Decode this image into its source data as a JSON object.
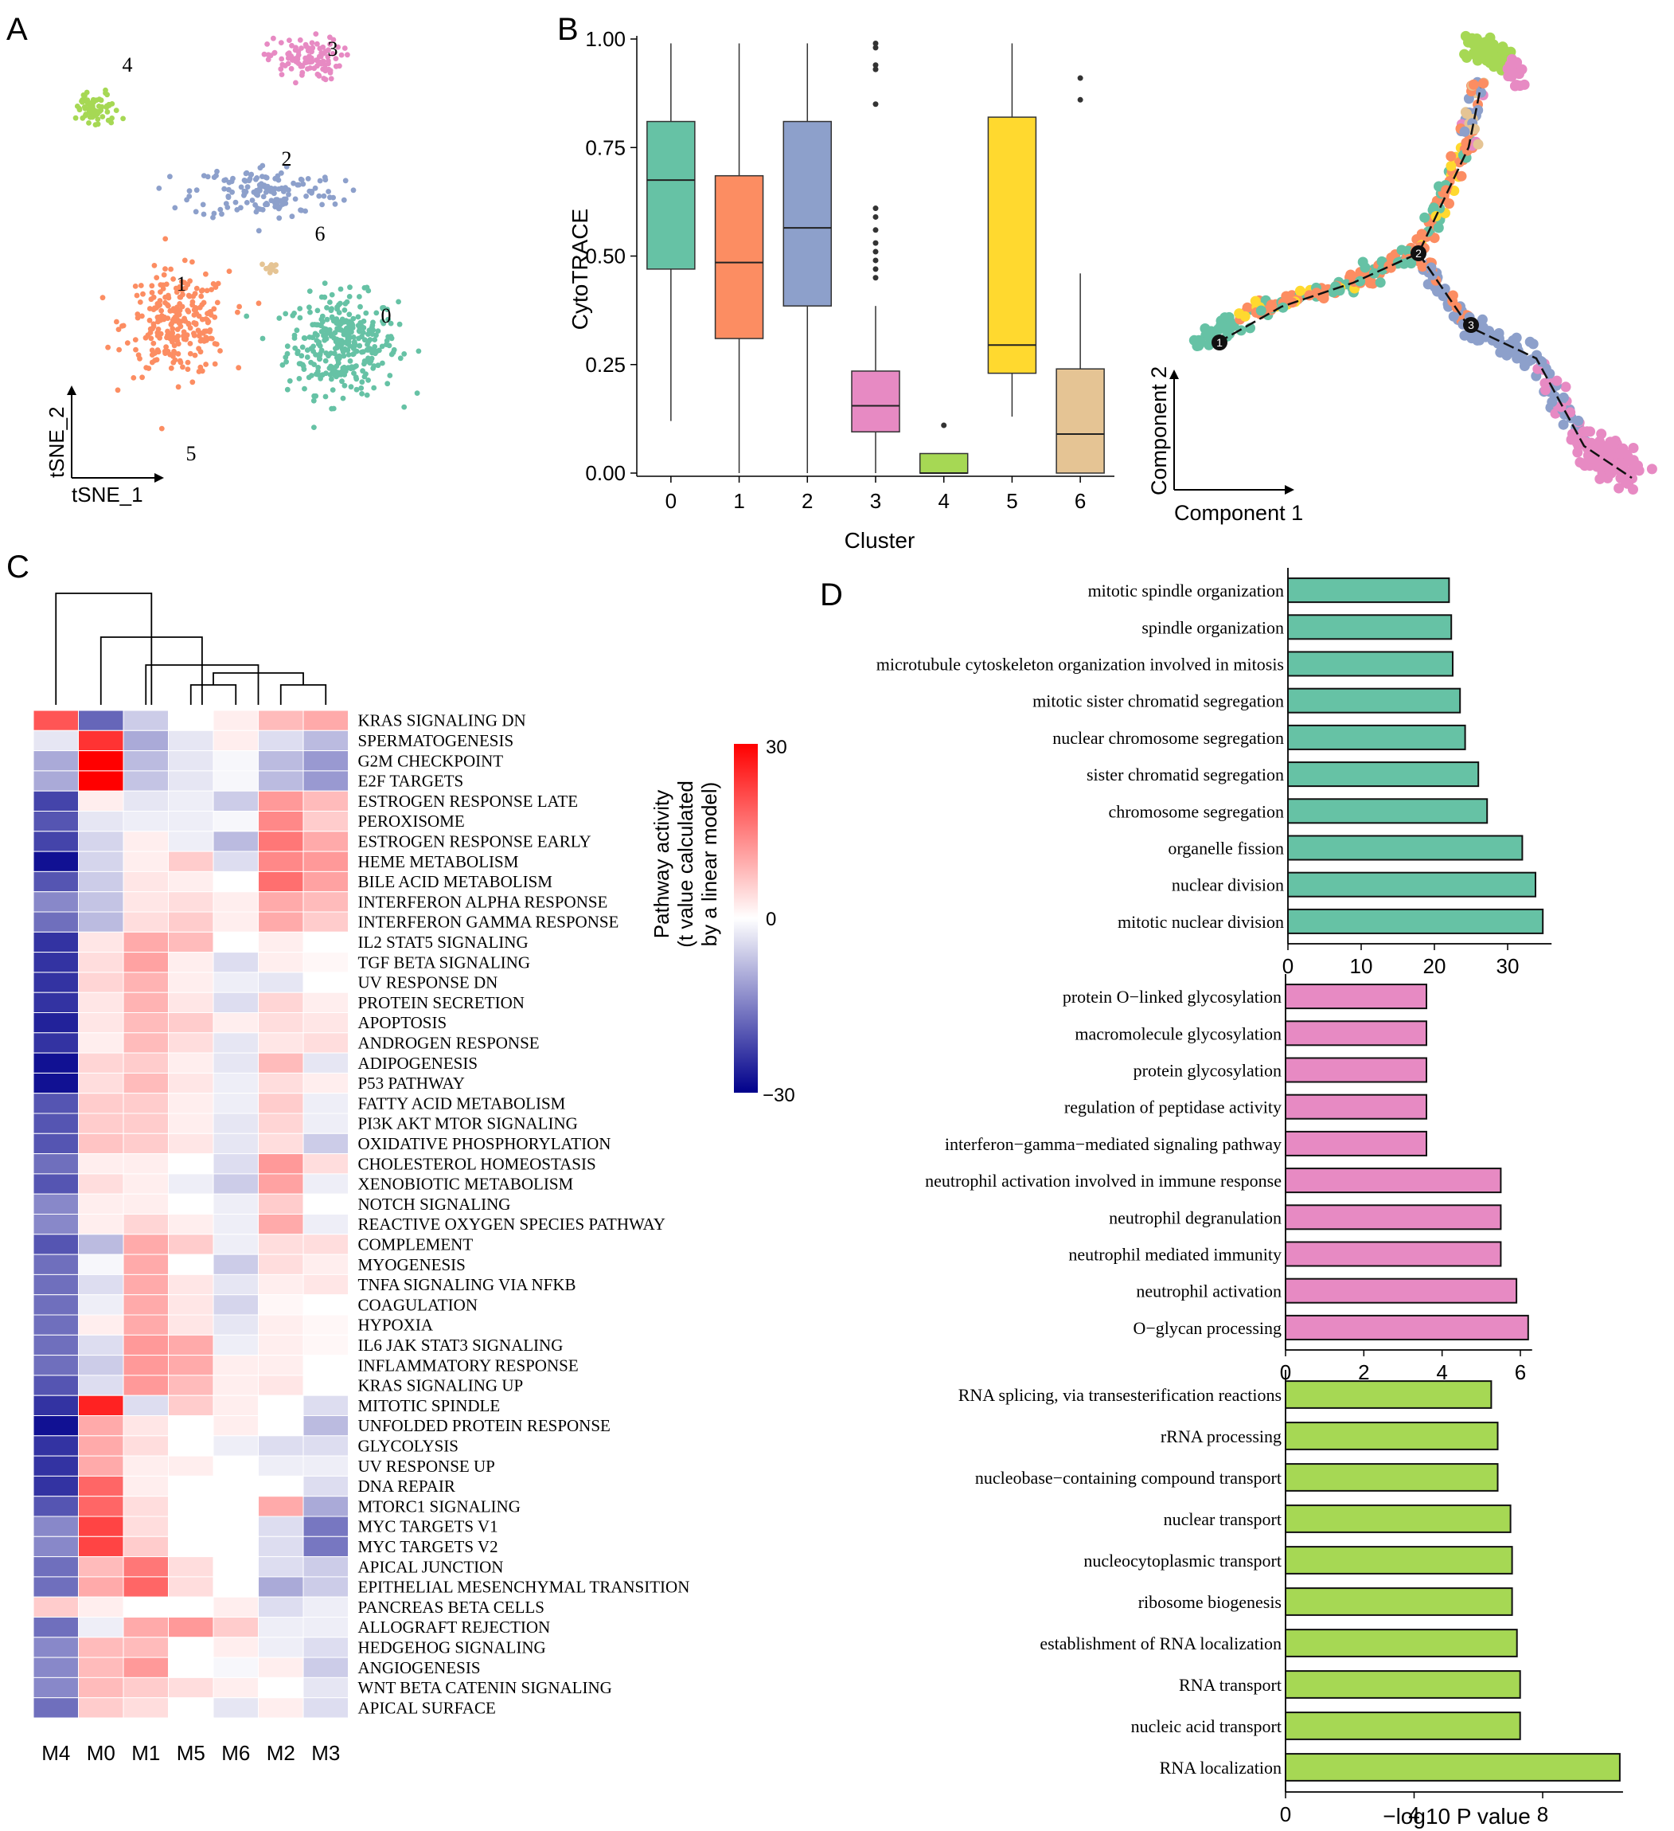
{
  "panel_letters": [
    "A",
    "B",
    "C",
    "D"
  ],
  "chart_data": [
    {
      "panel": "A",
      "type": "scatter",
      "xlabel": "tSNE_1",
      "ylabel": "tSNE_2",
      "cluster_labels": [
        "0",
        "1",
        "2",
        "3",
        "4",
        "5",
        "6"
      ],
      "clusters": [
        {
          "name": "0",
          "color": "#66c2a5",
          "center": [
            0.25,
            -0.32
          ],
          "spread": [
            0.18,
            0.16
          ],
          "n": 330
        },
        {
          "name": "1",
          "color": "#fc8d62",
          "center": [
            -0.4,
            -0.24
          ],
          "spread": [
            0.17,
            0.17
          ],
          "n": 260
        },
        {
          "name": "2",
          "color": "#8da0cb",
          "center": [
            -0.05,
            0.28
          ],
          "spread": [
            0.24,
            0.09
          ],
          "n": 150
        },
        {
          "name": "3",
          "color": "#e78ac3",
          "center": [
            0.1,
            0.8
          ],
          "spread": [
            0.12,
            0.07
          ],
          "n": 110
        },
        {
          "name": "4",
          "color": "#a6d854",
          "center": [
            -0.72,
            0.6
          ],
          "spread": [
            0.08,
            0.06
          ],
          "n": 70
        },
        {
          "name": "5",
          "color": "#ffd92f",
          "center": [
            -0.52,
            -0.98
          ],
          "spread": [
            0.03,
            0.025
          ],
          "n": 14
        },
        {
          "name": "6",
          "color": "#e5c494",
          "center": [
            -0.03,
            -0.02
          ],
          "spread": [
            0.03,
            0.02
          ],
          "n": 10
        }
      ]
    },
    {
      "panel": "B",
      "type": "box",
      "xlabel": "Cluster",
      "ylabel": "CytoTRACE",
      "ylim": [
        0,
        1
      ],
      "yticks": [
        "0.00",
        "0.25",
        "0.50",
        "0.75",
        "1.00"
      ],
      "categories": [
        "0",
        "1",
        "2",
        "3",
        "4",
        "5",
        "6"
      ],
      "colors": [
        "#66c2a5",
        "#fc8d62",
        "#8da0cb",
        "#e78ac3",
        "#a6d854",
        "#ffd92f",
        "#e5c494"
      ],
      "boxes": [
        {
          "min": 0.12,
          "q1": 0.47,
          "median": 0.675,
          "q3": 0.81,
          "max": 0.99,
          "outliers": []
        },
        {
          "min": 0.0,
          "q1": 0.31,
          "median": 0.485,
          "q3": 0.685,
          "max": 0.99,
          "outliers": []
        },
        {
          "min": 0.0,
          "q1": 0.385,
          "median": 0.565,
          "q3": 0.81,
          "max": 0.99,
          "outliers": []
        },
        {
          "min": 0.0,
          "q1": 0.095,
          "median": 0.155,
          "q3": 0.235,
          "max": 0.385,
          "outliers": [
            0.99,
            0.98,
            0.94,
            0.93,
            0.85,
            0.61,
            0.59,
            0.56,
            0.53,
            0.51,
            0.49,
            0.47,
            0.45
          ]
        },
        {
          "min": 0.0,
          "q1": 0.0,
          "median": 0.0,
          "q3": 0.045,
          "max": 0.045,
          "outliers": [
            0.11
          ]
        },
        {
          "min": 0.13,
          "q1": 0.23,
          "median": 0.295,
          "q3": 0.82,
          "max": 0.99,
          "outliers": []
        },
        {
          "min": 0.0,
          "q1": 0.0,
          "median": 0.09,
          "q3": 0.24,
          "max": 0.46,
          "outliers": [
            0.91,
            0.86
          ]
        }
      ]
    },
    {
      "panel": "B-right",
      "type": "scatter",
      "xlabel": "Component 1",
      "ylabel": "Component 2",
      "branch_points": [
        "1",
        "2",
        "3"
      ]
    },
    {
      "panel": "C",
      "type": "heatmap",
      "columns": [
        "M4",
        "M0",
        "M1",
        "M5",
        "M6",
        "M2",
        "M3"
      ],
      "colorbar": {
        "title_lines": [
          "Pathway activity",
          "(t value calculated",
          "by a linear model)"
        ],
        "ticks": [
          "30",
          "0",
          "−30"
        ],
        "range": [
          -30,
          30
        ],
        "low": "#00008b",
        "mid": "#ffffff",
        "high": "#ff0000"
      },
      "rows": [
        {
          "name": "KRAS SIGNALING DN",
          "values": [
            20,
            -18,
            -6,
            0,
            2,
            8,
            10
          ]
        },
        {
          "name": "SPERMATOGENESIS",
          "values": [
            -3,
            24,
            -10,
            -3,
            2,
            -4,
            -8
          ]
        },
        {
          "name": "G2M CHECKPOINT",
          "values": [
            -10,
            30,
            -8,
            -3,
            -1,
            -8,
            -12
          ]
        },
        {
          "name": "E2F TARGETS",
          "values": [
            -10,
            30,
            -7,
            -3,
            -1,
            -8,
            -12
          ]
        },
        {
          "name": "ESTROGEN RESPONSE LATE",
          "values": [
            -22,
            2,
            -3,
            -2,
            -6,
            12,
            8
          ]
        },
        {
          "name": "PEROXISOME",
          "values": [
            -20,
            -3,
            -2,
            -2,
            -1,
            14,
            6
          ]
        },
        {
          "name": "ESTROGEN RESPONSE EARLY",
          "values": [
            -22,
            -5,
            2,
            -2,
            -8,
            16,
            10
          ]
        },
        {
          "name": "HEME METABOLISM",
          "values": [
            -28,
            -5,
            2,
            6,
            -4,
            14,
            12
          ]
        },
        {
          "name": "BILE ACID METABOLISM",
          "values": [
            -20,
            -6,
            3,
            2,
            0,
            17,
            11
          ]
        },
        {
          "name": "INTERFERON ALPHA RESPONSE",
          "values": [
            -14,
            -7,
            3,
            4,
            2,
            10,
            8
          ]
        },
        {
          "name": "INTERFERON GAMMA RESPONSE",
          "values": [
            -17,
            -8,
            4,
            6,
            2,
            10,
            6
          ]
        },
        {
          "name": "IL2 STAT5 SIGNALING",
          "values": [
            -24,
            3,
            10,
            8,
            0,
            2,
            0
          ]
        },
        {
          "name": "TGF BETA SIGNALING",
          "values": [
            -24,
            4,
            11,
            2,
            -4,
            2,
            1
          ]
        },
        {
          "name": "UV RESPONSE DN",
          "values": [
            -24,
            5,
            9,
            2,
            -2,
            -3,
            0
          ]
        },
        {
          "name": "PROTEIN SECRETION",
          "values": [
            -24,
            3,
            9,
            3,
            -4,
            5,
            2
          ]
        },
        {
          "name": "APOPTOSIS",
          "values": [
            -26,
            3,
            8,
            6,
            2,
            4,
            3
          ]
        },
        {
          "name": "ANDROGEN RESPONSE",
          "values": [
            -24,
            2,
            8,
            4,
            -3,
            3,
            4
          ]
        },
        {
          "name": "ADIPOGENESIS",
          "values": [
            -28,
            5,
            6,
            2,
            -3,
            8,
            -3
          ]
        },
        {
          "name": "P53 PATHWAY",
          "values": [
            -28,
            4,
            8,
            3,
            -2,
            4,
            2
          ]
        },
        {
          "name": "FATTY ACID METABOLISM",
          "values": [
            -20,
            6,
            6,
            2,
            -2,
            6,
            -2
          ]
        },
        {
          "name": "PI3K AKT MTOR SIGNALING",
          "values": [
            -20,
            6,
            6,
            2,
            -3,
            5,
            -2
          ]
        },
        {
          "name": "OXIDATIVE PHOSPHORYLATION",
          "values": [
            -20,
            7,
            6,
            3,
            -3,
            4,
            -6
          ]
        },
        {
          "name": "CHOLESTEROL HOMEOSTASIS",
          "values": [
            -17,
            2,
            2,
            0,
            -4,
            12,
            4
          ]
        },
        {
          "name": "XENOBIOTIC METABOLISM",
          "values": [
            -20,
            4,
            2,
            -2,
            -6,
            11,
            -2
          ]
        },
        {
          "name": "NOTCH SIGNALING",
          "values": [
            -14,
            2,
            2,
            0,
            -2,
            6,
            0
          ]
        },
        {
          "name": "REACTIVE OXYGEN SPECIES PATHWAY",
          "values": [
            -14,
            2,
            5,
            2,
            -2,
            10,
            -2
          ]
        },
        {
          "name": "COMPLEMENT",
          "values": [
            -20,
            -8,
            10,
            6,
            -2,
            4,
            4
          ]
        },
        {
          "name": "MYOGENESIS",
          "values": [
            -17,
            -1,
            10,
            0,
            -6,
            4,
            2
          ]
        },
        {
          "name": "TNFA SIGNALING VIA NFKB",
          "values": [
            -17,
            -4,
            10,
            3,
            -3,
            2,
            3
          ]
        },
        {
          "name": "COAGULATION",
          "values": [
            -17,
            -2,
            10,
            3,
            -5,
            1,
            0
          ]
        },
        {
          "name": "HYPOXIA",
          "values": [
            -17,
            2,
            10,
            3,
            -3,
            2,
            1
          ]
        },
        {
          "name": "IL6 JAK STAT3 SIGNALING",
          "values": [
            -17,
            -4,
            12,
            10,
            -2,
            2,
            1
          ]
        },
        {
          "name": "INFLAMMATORY RESPONSE",
          "values": [
            -17,
            -6,
            12,
            10,
            2,
            2,
            0
          ]
        },
        {
          "name": "KRAS SIGNALING UP",
          "values": [
            -20,
            -4,
            12,
            8,
            2,
            3,
            0
          ]
        },
        {
          "name": "MITOTIC SPINDLE",
          "values": [
            -24,
            26,
            -4,
            6,
            2,
            0,
            -4
          ]
        },
        {
          "name": "UNFOLDED PROTEIN RESPONSE",
          "values": [
            -28,
            10,
            3,
            0,
            2,
            0,
            -8
          ]
        },
        {
          "name": "GLYCOLYSIS",
          "values": [
            -24,
            10,
            4,
            0,
            -2,
            -4,
            -4
          ]
        },
        {
          "name": "UV RESPONSE UP",
          "values": [
            -24,
            10,
            2,
            2,
            0,
            -2,
            -2
          ]
        },
        {
          "name": "DNA REPAIR",
          "values": [
            -24,
            18,
            2,
            0,
            0,
            0,
            -4
          ]
        },
        {
          "name": "MTORC1 SIGNALING",
          "values": [
            -20,
            18,
            4,
            0,
            0,
            10,
            -10
          ]
        },
        {
          "name": "MYC TARGETS V1",
          "values": [
            -14,
            22,
            4,
            0,
            0,
            -4,
            -16
          ]
        },
        {
          "name": "MYC TARGETS V2",
          "values": [
            -14,
            22,
            6,
            0,
            0,
            -4,
            -16
          ]
        },
        {
          "name": "APICAL JUNCTION",
          "values": [
            -17,
            8,
            16,
            4,
            0,
            -4,
            -6
          ]
        },
        {
          "name": "EPITHELIAL MESENCHYMAL TRANSITION",
          "values": [
            -17,
            10,
            18,
            4,
            0,
            -10,
            -6
          ]
        },
        {
          "name": "PANCREAS BETA CELLS",
          "values": [
            6,
            2,
            0,
            0,
            2,
            -4,
            -2
          ]
        },
        {
          "name": "ALLOGRAFT REJECTION",
          "values": [
            -17,
            -2,
            10,
            12,
            6,
            -2,
            -2
          ]
        },
        {
          "name": "HEDGEHOG SIGNALING",
          "values": [
            -14,
            8,
            8,
            0,
            2,
            -2,
            -4
          ]
        },
        {
          "name": "ANGIOGENESIS",
          "values": [
            -14,
            8,
            12,
            0,
            -1,
            2,
            -6
          ]
        },
        {
          "name": "WNT BETA CATENIN SIGNALING",
          "values": [
            -14,
            8,
            6,
            4,
            2,
            0,
            -3
          ]
        },
        {
          "name": "APICAL SURFACE",
          "values": [
            -17,
            6,
            4,
            0,
            -3,
            2,
            -4
          ]
        }
      ]
    },
    {
      "panel": "D1",
      "type": "bar",
      "orientation": "horizontal",
      "color": "#66c2a5",
      "categories": [
        "mitotic spindle organization",
        "spindle organization",
        "microtubule cytoskeleton organization involved in mitosis",
        "mitotic sister chromatid segregation",
        "nuclear chromosome segregation",
        "sister chromatid segregation",
        "chromosome segregation",
        "organelle fission",
        "nuclear division",
        "mitotic nuclear division"
      ],
      "values": [
        22.0,
        22.3,
        22.5,
        23.5,
        24.2,
        26.0,
        27.2,
        32.0,
        33.8,
        34.8
      ],
      "xlim": [
        0,
        36
      ],
      "xticks": [
        "0",
        "10",
        "20",
        "30"
      ]
    },
    {
      "panel": "D2",
      "type": "bar",
      "orientation": "horizontal",
      "color": "#e78ac3",
      "categories": [
        "protein O−linked glycosylation",
        "macromolecule glycosylation",
        "protein glycosylation",
        "regulation of peptidase activity",
        "interferon−gamma−mediated signaling pathway",
        "neutrophil activation involved in immune response",
        "neutrophil degranulation",
        "neutrophil mediated immunity",
        "neutrophil activation",
        "O−glycan processing"
      ],
      "values": [
        3.6,
        3.6,
        3.6,
        3.6,
        3.6,
        5.5,
        5.5,
        5.5,
        5.9,
        6.2
      ],
      "xlim": [
        0,
        6.3
      ],
      "xticks": [
        "0",
        "2",
        "4",
        "6"
      ]
    },
    {
      "panel": "D3",
      "type": "bar",
      "orientation": "horizontal",
      "color": "#a6d854",
      "categories": [
        "RNA splicing, via transesterification reactions",
        "rRNA processing",
        "nucleobase−containing compound transport",
        "nuclear transport",
        "nucleocytoplasmic transport",
        "ribosome biogenesis",
        "establishment of RNA localization",
        "RNA transport",
        "nucleic acid transport",
        "RNA localization"
      ],
      "values": [
        6.4,
        6.6,
        6.6,
        7.0,
        7.05,
        7.05,
        7.2,
        7.3,
        7.3,
        10.4
      ],
      "xlim": [
        0,
        10.5
      ],
      "xticks": [
        "0",
        "4",
        "8"
      ],
      "xlabel": "−log10 P value"
    }
  ]
}
